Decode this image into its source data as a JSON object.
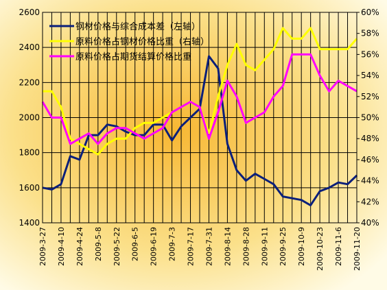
{
  "chart_data": {
    "type": "line",
    "legend": "upper left",
    "grid": true,
    "categories": [
      "2009-3-27",
      null,
      "2009-4-10",
      null,
      "2009-4-24",
      null,
      "2009-5-8",
      null,
      "2009-5-22",
      null,
      "2009-6-5",
      null,
      "2009-6-19",
      null,
      "2009-7-3",
      null,
      "2009-7-17",
      null,
      "2009-7-31",
      null,
      "2009-8-14",
      null,
      "2009-8-28",
      null,
      "2009-9-11",
      null,
      "2009-9-25",
      null,
      "2009-10-9",
      null,
      "2009-10-23",
      null,
      "2009-11-6",
      null,
      "2009-11-20"
    ],
    "ylim": [
      1400,
      2600
    ],
    "yticks": [
      1400,
      1600,
      1800,
      2000,
      2200,
      2400,
      2600
    ],
    "y2lim": [
      40,
      60
    ],
    "y2ticks": [
      {
        "value": 40,
        "label": "40%"
      },
      {
        "value": 42,
        "label": "42%"
      },
      {
        "value": 44,
        "label": "44%"
      },
      {
        "value": 46,
        "label": "46%"
      },
      {
        "value": 48,
        "label": "48%"
      },
      {
        "value": 50,
        "label": "50%"
      },
      {
        "value": 52,
        "label": "52%"
      },
      {
        "value": 54,
        "label": "54%"
      },
      {
        "value": 56,
        "label": "56%"
      },
      {
        "value": 58,
        "label": "58%"
      },
      {
        "value": 60,
        "label": "60%"
      }
    ],
    "series": [
      {
        "name": "钢材价格与综合成本差（左轴）",
        "color": "#0a1f7a",
        "axis": "y",
        "values": [
          1600,
          1590,
          1620,
          1780,
          1760,
          1900,
          1900,
          1960,
          1950,
          1920,
          1900,
          1900,
          1960,
          1960,
          1870,
          1950,
          2000,
          2050,
          2350,
          2280,
          1850,
          1700,
          1640,
          1680,
          1650,
          1620,
          1550,
          1540,
          1530,
          1500,
          1580,
          1600,
          1630,
          1620,
          1670
        ]
      },
      {
        "name": "原料价格占钢材价格比重（右轴）",
        "color": "#ffff00",
        "axis": "y2",
        "values": [
          52.5,
          52.5,
          51,
          48,
          47.5,
          47,
          46.5,
          47.5,
          48,
          48,
          49,
          49.5,
          49.5,
          50,
          50.5,
          51,
          51.5,
          51,
          48.5,
          52,
          55,
          57,
          55,
          54.5,
          55.5,
          56.5,
          58.5,
          57.5,
          57.5,
          58.5,
          56.5,
          56.5,
          56.5,
          56.5,
          57.5
        ]
      },
      {
        "name": "原料价格占期货结算价格比重",
        "color": "#ff00ff",
        "axis": "y2",
        "values": [
          51.5,
          50,
          50,
          47.5,
          48,
          48.5,
          47.5,
          48.5,
          49,
          49,
          48.5,
          48,
          48.5,
          49,
          50.5,
          51,
          51.5,
          51,
          48,
          50.5,
          53.5,
          52,
          49.5,
          50,
          50.5,
          52,
          53,
          56,
          56,
          56,
          54,
          52.5,
          53.5,
          53,
          52.5
        ]
      }
    ]
  }
}
